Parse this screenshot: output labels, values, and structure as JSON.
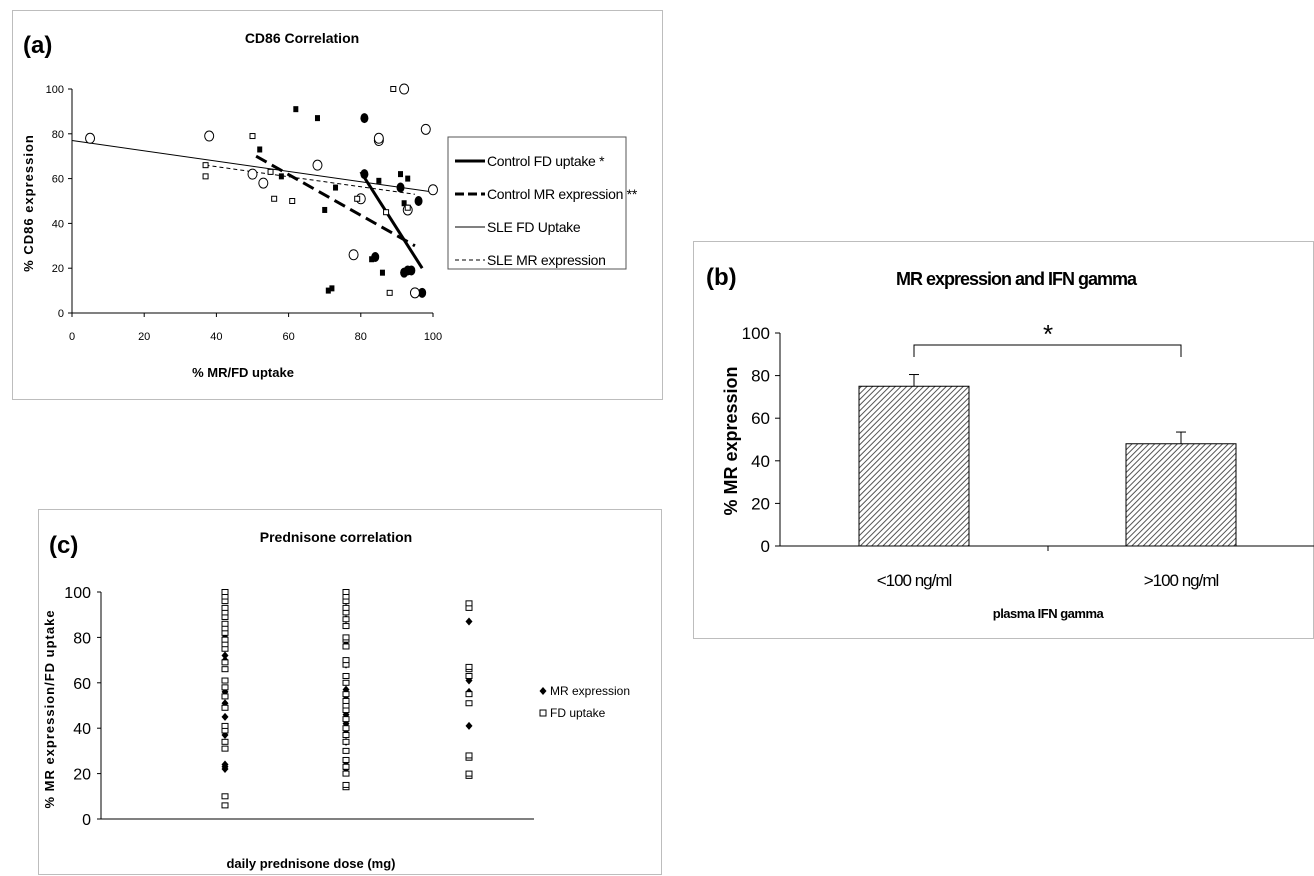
{
  "chart_data": [
    {
      "panel_label": "(a)",
      "type": "scatter",
      "title": "CD86 Correlation",
      "xlabel": "% MR/FD uptake",
      "ylabel": "% CD86 expression",
      "xlim": [
        0,
        100
      ],
      "ylim": [
        0,
        100
      ],
      "xticks": [
        "0",
        "20",
        "40",
        "60",
        "80",
        "100"
      ],
      "yticks": [
        "0",
        "20",
        "40",
        "60",
        "80",
        "100"
      ],
      "grid": false,
      "legend_position": "right",
      "series": [
        {
          "label": "control-fd",
          "marker": "filled-circle",
          "points": [
            [
              81,
              87
            ],
            [
              81,
              62
            ],
            [
              84,
              25
            ],
            [
              91,
              56
            ],
            [
              92,
              18
            ],
            [
              93,
              19
            ],
            [
              94,
              19
            ],
            [
              96,
              50
            ],
            [
              97,
              9
            ]
          ]
        },
        {
          "label": "control-mr",
          "marker": "filled-square",
          "points": [
            [
              52,
              73
            ],
            [
              58,
              61
            ],
            [
              62,
              91
            ],
            [
              68,
              87
            ],
            [
              70,
              46
            ],
            [
              71,
              10
            ],
            [
              72,
              11
            ],
            [
              73,
              56
            ],
            [
              83,
              24
            ],
            [
              84,
              25
            ],
            [
              85,
              59
            ],
            [
              86,
              18
            ],
            [
              91,
              62
            ],
            [
              92,
              49
            ],
            [
              93,
              60
            ]
          ]
        },
        {
          "label": "sle-fd",
          "marker": "open-circle",
          "points": [
            [
              5,
              78
            ],
            [
              38,
              79
            ],
            [
              50,
              62
            ],
            [
              53,
              58
            ],
            [
              68,
              66
            ],
            [
              78,
              26
            ],
            [
              80,
              51
            ],
            [
              85,
              77
            ],
            [
              85,
              78
            ],
            [
              92,
              100
            ],
            [
              93,
              46
            ],
            [
              95,
              9
            ],
            [
              98,
              82
            ],
            [
              100,
              55
            ]
          ]
        },
        {
          "label": "sle-mr",
          "marker": "open-square",
          "points": [
            [
              37,
              66
            ],
            [
              37,
              61
            ],
            [
              50,
              79
            ],
            [
              55,
              63
            ],
            [
              56,
              51
            ],
            [
              61,
              50
            ],
            [
              79,
              51
            ],
            [
              87,
              45
            ],
            [
              88,
              9
            ],
            [
              89,
              100
            ],
            [
              93,
              47
            ]
          ]
        }
      ],
      "trendlines": [
        {
          "name": "Control FD uptake *",
          "style": "thick-solid",
          "points": [
            [
              80,
              63
            ],
            [
              97,
              20
            ]
          ]
        },
        {
          "name": "Control MR expression **",
          "style": "thick-dash",
          "points": [
            [
              51,
              70
            ],
            [
              95,
              30
            ]
          ]
        },
        {
          "name": "SLE FD Uptake",
          "style": "thin-solid",
          "points": [
            [
              0,
              77
            ],
            [
              100,
              54
            ]
          ]
        },
        {
          "name": "SLE MR expression",
          "style": "thin-dash",
          "points": [
            [
              37,
              66
            ],
            [
              95,
              53
            ]
          ]
        }
      ]
    },
    {
      "panel_label": "(b)",
      "type": "bar",
      "title": "MR expression and IFN gamma",
      "xlabel": "plasma IFN gamma",
      "ylabel": "% MR expression",
      "categories": [
        "<100 ng/ml",
        ">100 ng/ml"
      ],
      "values": [
        75,
        48
      ],
      "errors": [
        5.5,
        5.5
      ],
      "ylim": [
        0,
        100
      ],
      "yticks": [
        "0",
        "20",
        "40",
        "60",
        "80",
        "100"
      ],
      "significance": "*",
      "grid": false
    },
    {
      "panel_label": "(c)",
      "type": "scatter",
      "title": "Prednisone correlation",
      "xlabel": "daily prednisone dose (mg)",
      "ylabel": "% MR expression/FD uptake",
      "ylim": [
        0,
        100
      ],
      "yticks": [
        "0",
        "20",
        "40",
        "60",
        "80",
        "100"
      ],
      "grid": false,
      "legend_position": "right",
      "x_groups": 3,
      "series": [
        {
          "name": "MR expression",
          "marker": "filled-diamond",
          "points": [
            [
              1,
              22
            ],
            [
              1,
              23
            ],
            [
              1,
              24
            ],
            [
              1,
              37
            ],
            [
              1,
              45
            ],
            [
              1,
              51
            ],
            [
              1,
              56
            ],
            [
              1,
              70
            ],
            [
              1,
              72
            ],
            [
              1,
              80
            ],
            [
              1,
              82
            ],
            [
              2,
              22
            ],
            [
              2,
              25
            ],
            [
              2,
              34
            ],
            [
              2,
              38
            ],
            [
              2,
              42
            ],
            [
              2,
              46
            ],
            [
              2,
              51
            ],
            [
              2,
              53
            ],
            [
              2,
              55
            ],
            [
              2,
              57
            ],
            [
              2,
              68
            ],
            [
              2,
              77
            ],
            [
              2,
              88
            ],
            [
              2,
              96
            ],
            [
              3,
              41
            ],
            [
              3,
              56
            ],
            [
              3,
              61
            ],
            [
              3,
              62
            ],
            [
              3,
              87
            ]
          ]
        },
        {
          "name": "FD uptake",
          "marker": "open-square",
          "points": [
            [
              1,
              6
            ],
            [
              1,
              10
            ],
            [
              1,
              31
            ],
            [
              1,
              34
            ],
            [
              1,
              39
            ],
            [
              1,
              41
            ],
            [
              1,
              49
            ],
            [
              1,
              54
            ],
            [
              1,
              58
            ],
            [
              1,
              61
            ],
            [
              1,
              66
            ],
            [
              1,
              69
            ],
            [
              1,
              75
            ],
            [
              1,
              77
            ],
            [
              1,
              79
            ],
            [
              1,
              82
            ],
            [
              1,
              84
            ],
            [
              1,
              86
            ],
            [
              1,
              89
            ],
            [
              1,
              91
            ],
            [
              1,
              93
            ],
            [
              1,
              96
            ],
            [
              1,
              98
            ],
            [
              1,
              100
            ],
            [
              2,
              14
            ],
            [
              2,
              15
            ],
            [
              2,
              20
            ],
            [
              2,
              23
            ],
            [
              2,
              26
            ],
            [
              2,
              30
            ],
            [
              2,
              34
            ],
            [
              2,
              37
            ],
            [
              2,
              40
            ],
            [
              2,
              44
            ],
            [
              2,
              48
            ],
            [
              2,
              50
            ],
            [
              2,
              52
            ],
            [
              2,
              55
            ],
            [
              2,
              60
            ],
            [
              2,
              63
            ],
            [
              2,
              68
            ],
            [
              2,
              70
            ],
            [
              2,
              76
            ],
            [
              2,
              79
            ],
            [
              2,
              80
            ],
            [
              2,
              85
            ],
            [
              2,
              88
            ],
            [
              2,
              91
            ],
            [
              2,
              93
            ],
            [
              2,
              96
            ],
            [
              2,
              98
            ],
            [
              2,
              100
            ],
            [
              3,
              19
            ],
            [
              3,
              20
            ],
            [
              3,
              27
            ],
            [
              3,
              28
            ],
            [
              3,
              51
            ],
            [
              3,
              55
            ],
            [
              3,
              63
            ],
            [
              3,
              66
            ],
            [
              3,
              67
            ],
            [
              3,
              93
            ],
            [
              3,
              95
            ]
          ]
        }
      ]
    }
  ]
}
